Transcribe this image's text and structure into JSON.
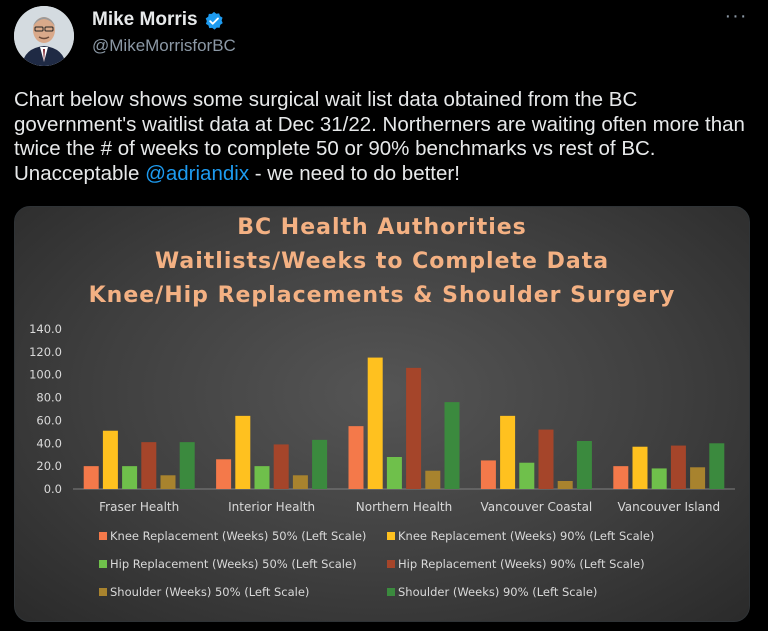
{
  "author": {
    "name": "Mike Morris",
    "handle": "@MikeMorrisforBC"
  },
  "tweet": {
    "text_before": "Chart below shows some surgical wait list data obtained from the BC government's waitlist data at Dec 31/22.  Northerners are waiting often more than twice the # of weeks to complete 50 or 90% benchmarks vs rest of BC.  Unacceptable ",
    "mention": "@adriandix",
    "text_after": " - we need to do better!"
  },
  "colors": {
    "background": "#000000",
    "accent": "#1d9bf0",
    "title": "#f4b183"
  },
  "chart_data": {
    "type": "bar",
    "title": "BC Health Authorities",
    "subtitle_lines": [
      "Waitlists/Weeks to Complete Data",
      "Knee/Hip Replacements & Shoulder Surgery"
    ],
    "categories": [
      "Fraser Health",
      "Interior Health",
      "Northern Health",
      "Vancouver Coastal",
      "Vancouver Island"
    ],
    "ylim": [
      0,
      140
    ],
    "yticks": [
      "0.0",
      "20.0",
      "40.0",
      "60.0",
      "80.0",
      "100.0",
      "120.0",
      "140.0"
    ],
    "legend_position": "bottom",
    "series": [
      {
        "name": "Knee Replacement (Weeks) 50% (Left Scale)",
        "color": "#f4794a",
        "values": [
          20,
          26,
          55,
          25,
          20
        ]
      },
      {
        "name": "Knee Replacement (Weeks) 90% (Left Scale)",
        "color": "#ffc11f",
        "values": [
          51,
          64,
          115,
          64,
          37
        ]
      },
      {
        "name": "Hip Replacement (Weeks) 50% (Left Scale)",
        "color": "#6fc04b",
        "values": [
          20,
          20,
          28,
          23,
          18
        ]
      },
      {
        "name": "Hip Replacement (Weeks) 90% (Left Scale)",
        "color": "#a5452a",
        "values": [
          41,
          39,
          106,
          52,
          38
        ]
      },
      {
        "name": "Shoulder (Weeks) 50% (Left Scale)",
        "color": "#a8832e",
        "values": [
          12,
          12,
          16,
          7,
          19
        ]
      },
      {
        "name": "Shoulder (Weeks) 90% (Left Scale)",
        "color": "#3b8a3e",
        "values": [
          41,
          43,
          76,
          42,
          40
        ]
      }
    ]
  }
}
